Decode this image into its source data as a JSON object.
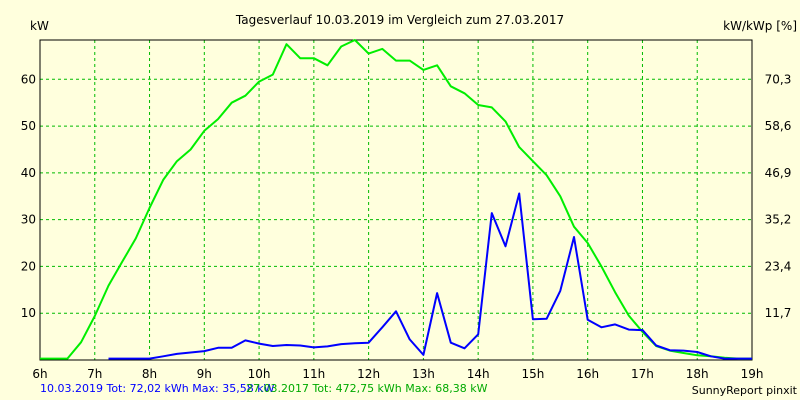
{
  "chart_data": {
    "type": "line",
    "title": "Tagesverlauf 10.03.2019 im Vergleich zum 27.03.2017",
    "ylabel_left": "kW",
    "ylabel_right": "kW/kWp [%]",
    "xlim": [
      6,
      19
    ],
    "ylim": [
      0,
      68.4
    ],
    "x_ticks": [
      "6h",
      "7h",
      "8h",
      "9h",
      "10h",
      "11h",
      "12h",
      "13h",
      "14h",
      "15h",
      "16h",
      "17h",
      "18h",
      "19h"
    ],
    "y_ticks_left": [
      "10",
      "20",
      "30",
      "40",
      "50",
      "60"
    ],
    "y_ticks_right": [
      "11,7",
      "23,4",
      "35,2",
      "46,9",
      "58,6",
      "70,3"
    ],
    "grid": true,
    "series": [
      {
        "name": "10.03.2019",
        "color": "#0000ff",
        "legend": "10.03.2019 Tot: 72,02 kWh Max: 35,58 kW",
        "x": [
          7.25,
          7.5,
          7.75,
          8.0,
          8.25,
          8.5,
          8.75,
          9.0,
          9.25,
          9.5,
          9.75,
          10.0,
          10.25,
          10.5,
          10.75,
          11.0,
          11.25,
          11.5,
          11.75,
          12.0,
          12.25,
          12.5,
          12.75,
          13.0,
          13.25,
          13.5,
          13.75,
          14.0,
          14.25,
          14.5,
          14.75,
          15.0,
          15.25,
          15.5,
          15.75,
          16.0,
          16.25,
          16.5,
          16.75,
          17.0,
          17.25,
          17.5,
          17.75,
          18.0,
          18.25,
          18.5,
          18.75,
          19.0
        ],
        "y": [
          0.3,
          0.3,
          0.3,
          0.3,
          0.8,
          1.3,
          1.6,
          1.9,
          2.6,
          2.6,
          4.2,
          3.5,
          3.0,
          3.2,
          3.1,
          2.7,
          2.9,
          3.4,
          3.6,
          3.7,
          7.0,
          10.4,
          4.4,
          1.1,
          14.3,
          3.7,
          2.5,
          5.5,
          31.4,
          24.3,
          35.6,
          8.7,
          8.8,
          14.8,
          26.3,
          8.6,
          7.0,
          7.6,
          6.5,
          6.4,
          3.1,
          2.1,
          2.0,
          1.7,
          0.8,
          0.3,
          0.3,
          0.3
        ]
      },
      {
        "name": "27.03.2017",
        "color": "#00ee00",
        "legend": "27.03.2017 Tot: 472,75 kWh Max: 68,38 kW",
        "x": [
          6.0,
          6.5,
          6.75,
          7.0,
          7.25,
          7.5,
          7.75,
          8.0,
          8.25,
          8.5,
          8.75,
          9.0,
          9.25,
          9.5,
          9.75,
          10.0,
          10.25,
          10.5,
          10.75,
          11.0,
          11.25,
          11.5,
          11.75,
          12.0,
          12.25,
          12.5,
          12.75,
          13.0,
          13.25,
          13.5,
          13.75,
          14.0,
          14.25,
          14.5,
          14.75,
          15.0,
          15.25,
          15.5,
          15.75,
          16.0,
          16.25,
          16.5,
          16.75,
          17.0,
          17.25,
          17.5,
          17.75,
          18.0,
          18.25,
          18.5,
          18.75,
          19.0
        ],
        "y": [
          0.3,
          0.3,
          3.8,
          9.4,
          15.9,
          21.0,
          26.0,
          32.5,
          38.5,
          42.5,
          45.0,
          49.0,
          51.5,
          55.0,
          56.5,
          59.5,
          61.0,
          67.5,
          64.5,
          64.5,
          63.0,
          67.0,
          68.4,
          65.5,
          66.5,
          64.0,
          64.0,
          62.0,
          63.0,
          58.5,
          57.0,
          54.5,
          54.0,
          51.0,
          45.5,
          42.5,
          39.5,
          35.0,
          28.5,
          25.0,
          20.0,
          14.5,
          9.5,
          6.0,
          3.0,
          2.0,
          1.5,
          1.0,
          0.8,
          0.5,
          0.3,
          0.3
        ]
      }
    ],
    "footer_right": "SunnyReport pinxit"
  }
}
